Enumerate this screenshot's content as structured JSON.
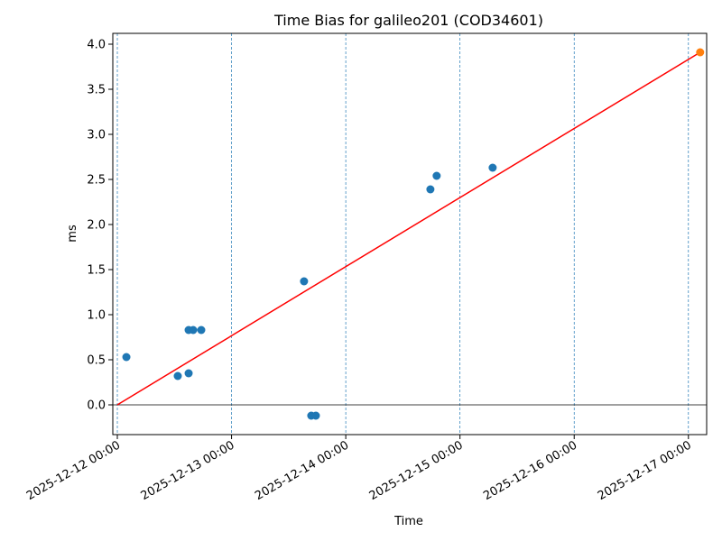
{
  "chart_data": {
    "type": "scatter",
    "title": "Time Bias for galileo201 (COD34601)",
    "xlabel": "Time",
    "ylabel": "ms",
    "series": [
      {
        "type": "scatter",
        "color": "#1f77b4",
        "x": [
          "2025-12-12 01:54",
          "2025-12-12 12:42",
          "2025-12-12 14:59",
          "2025-12-12 14:59",
          "2025-12-12 15:56",
          "2025-12-12 17:38",
          "2025-12-13 15:14",
          "2025-12-13 16:45",
          "2025-12-13 17:43",
          "2025-12-14 17:47",
          "2025-12-14 19:06",
          "2025-12-15 06:52"
        ],
        "values": [
          0.53,
          0.32,
          0.35,
          0.83,
          0.83,
          0.83,
          1.37,
          -0.12,
          -0.12,
          2.39,
          2.54,
          2.63
        ]
      },
      {
        "type": "scatter",
        "color": "#ff7f0e",
        "x": [
          "2025-12-17 02:28"
        ],
        "values": [
          3.91
        ]
      },
      {
        "type": "line",
        "color": "#ff0000",
        "x": [
          "2025-12-12 00:00",
          "2025-12-17 02:28"
        ],
        "values": [
          0,
          3.91
        ]
      }
    ],
    "hline": 0,
    "xlim": [
      "2025-12-11 23:03",
      "2025-12-17 03:50"
    ],
    "xticks": [
      "2025-12-12 00:00",
      "2025-12-13 00:00",
      "2025-12-14 00:00",
      "2025-12-15 00:00",
      "2025-12-16 00:00",
      "2025-12-17 00:00"
    ],
    "ylim": [
      -0.33,
      4.12
    ],
    "yticks": [
      {
        "value": 0,
        "label": "0.0"
      },
      0.5,
      {
        "value": 1,
        "label": "1.0"
      },
      1.5,
      {
        "value": 2,
        "label": "2.0"
      },
      2.5,
      {
        "value": 3,
        "label": "3.0"
      },
      3.5,
      {
        "value": 4,
        "label": "4.0"
      }
    ],
    "xgrid": true
  }
}
